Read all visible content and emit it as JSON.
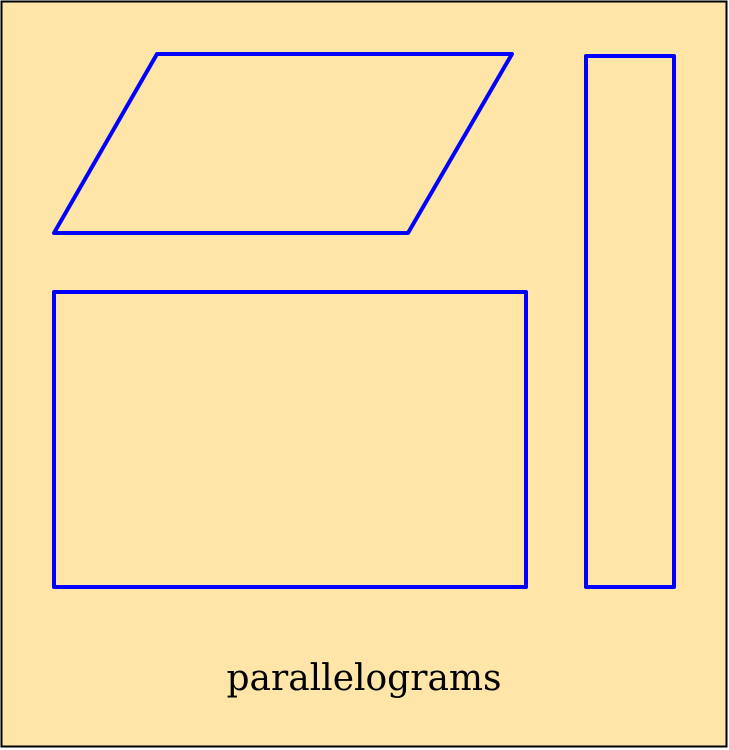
{
  "diagram": {
    "caption": "parallelograms",
    "colors": {
      "background": "#FFE5A8",
      "border": "#000000",
      "shape_stroke": "#0000FF",
      "caption_text": "#000000"
    },
    "shapes": [
      {
        "kind": "slanted-parallelogram"
      },
      {
        "kind": "rectangle"
      },
      {
        "kind": "tall-rectangle"
      }
    ]
  }
}
